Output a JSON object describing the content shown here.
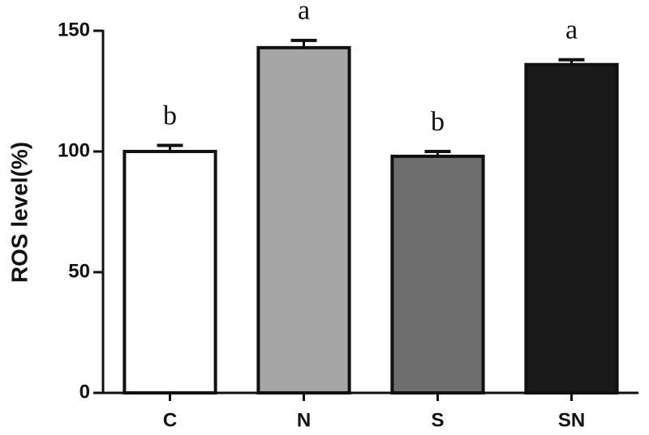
{
  "chart_data": {
    "type": "bar",
    "y_label": "ROS level(%)",
    "categories": [
      "C",
      "N",
      "S",
      "SN"
    ],
    "values": [
      100,
      143,
      98,
      136
    ],
    "errors": [
      2.5,
      3,
      2,
      2
    ],
    "significance": [
      "b",
      "a",
      "b",
      "a"
    ],
    "colors": [
      "#ffffff",
      "#a6a6a6",
      "#6e6e6e",
      "#1a1a1a"
    ],
    "ylim": [
      0,
      150
    ],
    "yticks": [
      0,
      50,
      100,
      150
    ],
    "grid": false
  }
}
